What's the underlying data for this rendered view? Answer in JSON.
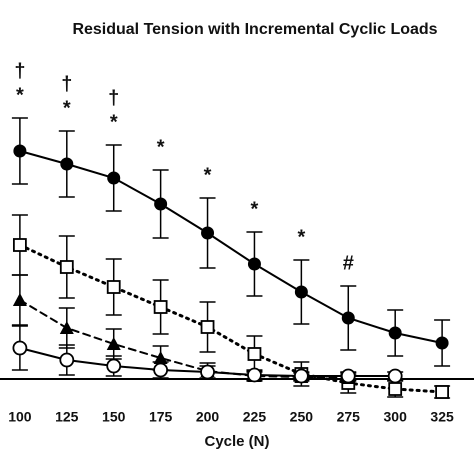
{
  "chart_data": {
    "type": "line",
    "title": "Residual Tension with Incremental Cyclic Loads",
    "x_label": "Cycle (N)",
    "x": [
      100,
      125,
      150,
      175,
      200,
      225,
      250,
      275,
      300,
      325
    ],
    "xlim": [
      89.4,
      342
    ],
    "xticks": [
      100,
      125,
      150,
      175,
      200,
      225,
      250,
      275,
      300,
      325
    ],
    "ylim": [
      -9.5,
      37.9
    ],
    "series": [
      {
        "marker": "filled-circle",
        "line": "solid",
        "color": "#000000",
        "values": [
          22.8,
          21.5,
          20.1,
          17.5,
          14.6,
          11.5,
          8.7,
          6.1,
          4.6,
          3.6
        ],
        "errors": [
          3.3,
          3.3,
          3.3,
          3.4,
          3.5,
          3.2,
          3.2,
          3.2,
          2.3,
          2.3
        ]
      },
      {
        "marker": "open-square",
        "line": "dotted",
        "color": "#000000",
        "values": [
          13.4,
          11.2,
          9.2,
          7.2,
          5.2,
          2.5,
          0.5,
          -0.4,
          -1.0,
          -1.3
        ],
        "errors": [
          3.0,
          3.1,
          2.8,
          2.7,
          2.5,
          1.8,
          1.2,
          1.0,
          0.8,
          0.6
        ]
      },
      {
        "marker": "filled-triangle",
        "line": "dashed",
        "color": "#000000",
        "values": [
          7.9,
          5.1,
          3.5,
          2.1,
          0.8,
          0.3,
          0.2,
          0.1,
          null,
          null
        ],
        "errors": [
          2.5,
          2.0,
          1.5,
          1.2,
          0.8,
          0.5,
          0.4,
          0.3,
          null,
          null
        ]
      },
      {
        "marker": "open-circle",
        "line": "solid",
        "color": "#000000",
        "values": [
          3.1,
          1.9,
          1.3,
          0.9,
          0.7,
          0.4,
          0.3,
          0.3,
          0.3,
          null
        ],
        "errors": [
          2.2,
          1.5,
          1.0,
          0.8,
          0.6,
          0.5,
          0.4,
          0.4,
          0.4,
          null
        ]
      }
    ],
    "annotations": [
      {
        "x": 100,
        "texts": [
          "†",
          "*"
        ]
      },
      {
        "x": 125,
        "texts": [
          "†",
          "*"
        ]
      },
      {
        "x": 150,
        "texts": [
          "†",
          "*"
        ]
      },
      {
        "x": 175,
        "texts": [
          "*"
        ]
      },
      {
        "x": 200,
        "texts": [
          "*"
        ]
      },
      {
        "x": 225,
        "texts": [
          "*"
        ]
      },
      {
        "x": 250,
        "texts": [
          "*"
        ]
      },
      {
        "x": 275,
        "texts": [
          "#"
        ]
      }
    ]
  }
}
